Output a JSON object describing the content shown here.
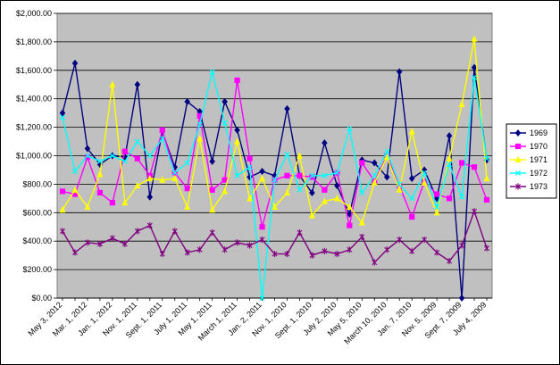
{
  "chart_data": {
    "type": "line",
    "ylim": [
      0,
      2000
    ],
    "yticks": [
      "$0.00",
      "$200.00",
      "$400.00",
      "$600.00",
      "$800.00",
      "$1,000.00",
      "$1,200.00",
      "$1,400.00",
      "$1,600.00",
      "$1,800.00",
      "$2,000.00"
    ],
    "ytick_values": [
      0,
      200,
      400,
      600,
      800,
      1000,
      1200,
      1400,
      1600,
      1800,
      2000
    ],
    "xtick_labels": [
      "May 3, 2012",
      "Mar. 1, 2012",
      "Jan. 1, 2012",
      "Nov. 1, 2011",
      "Sept. 1, 2011",
      "July 1, 2011",
      "May 1, 2011",
      "March 1, 2011",
      "Jan. 2, 2011",
      "Nov. 1, 2010",
      "Sept. 1, 2010",
      "July 2, 2010",
      "May 5, 2010",
      "March 10, 2010",
      "Jan. 7, 2010",
      "Nov. 5, 2009",
      "Sept. 7, 2009",
      "July 4, 2009"
    ],
    "grid": true,
    "plot_background": "#c0c0c0",
    "legend_position": "right",
    "series": [
      {
        "name": "1969",
        "color": "#000080",
        "marker": "diamond",
        "values": [
          1300,
          1650,
          1050,
          940,
          1000,
          990,
          1500,
          710,
          1170,
          920,
          1380,
          1310,
          960,
          1380,
          1180,
          850,
          890,
          860,
          1330,
          860,
          740,
          1090,
          790,
          590,
          970,
          950,
          850,
          1590,
          840,
          900,
          700,
          1140,
          0,
          1620,
          970
        ]
      },
      {
        "name": "1970",
        "color": "#ff00ff",
        "marker": "square",
        "values": [
          750,
          730,
          990,
          740,
          670,
          1030,
          980,
          860,
          1180,
          880,
          770,
          1280,
          760,
          830,
          1530,
          980,
          500,
          830,
          860,
          860,
          850,
          760,
          880,
          510,
          950,
          820,
          1000,
          790,
          570,
          820,
          730,
          700,
          950,
          920,
          690
        ]
      },
      {
        "name": "1971",
        "color": "#ffff00",
        "marker": "triangle",
        "values": [
          620,
          760,
          640,
          870,
          1500,
          670,
          790,
          840,
          830,
          840,
          640,
          1120,
          620,
          750,
          1100,
          700,
          840,
          640,
          740,
          1000,
          580,
          680,
          700,
          640,
          530,
          810,
          990,
          760,
          1170,
          810,
          600,
          980,
          1360,
          1820,
          840
        ]
      },
      {
        "name": "1972",
        "color": "#00ffff",
        "marker": "x",
        "values": [
          1270,
          890,
          1000,
          960,
          1000,
          960,
          1100,
          1000,
          1120,
          880,
          950,
          1220,
          1590,
          1230,
          860,
          920,
          0,
          830,
          1010,
          760,
          860,
          860,
          880,
          1190,
          740,
          860,
          1030,
          800,
          700,
          880,
          640,
          940,
          710,
          1550,
          980
        ]
      },
      {
        "name": "1973",
        "color": "#800080",
        "marker": "star",
        "values": [
          470,
          320,
          390,
          380,
          420,
          380,
          470,
          510,
          310,
          470,
          320,
          340,
          460,
          340,
          390,
          370,
          410,
          310,
          310,
          460,
          300,
          330,
          310,
          340,
          430,
          250,
          340,
          410,
          330,
          410,
          320,
          260,
          370,
          610,
          350
        ]
      }
    ]
  }
}
